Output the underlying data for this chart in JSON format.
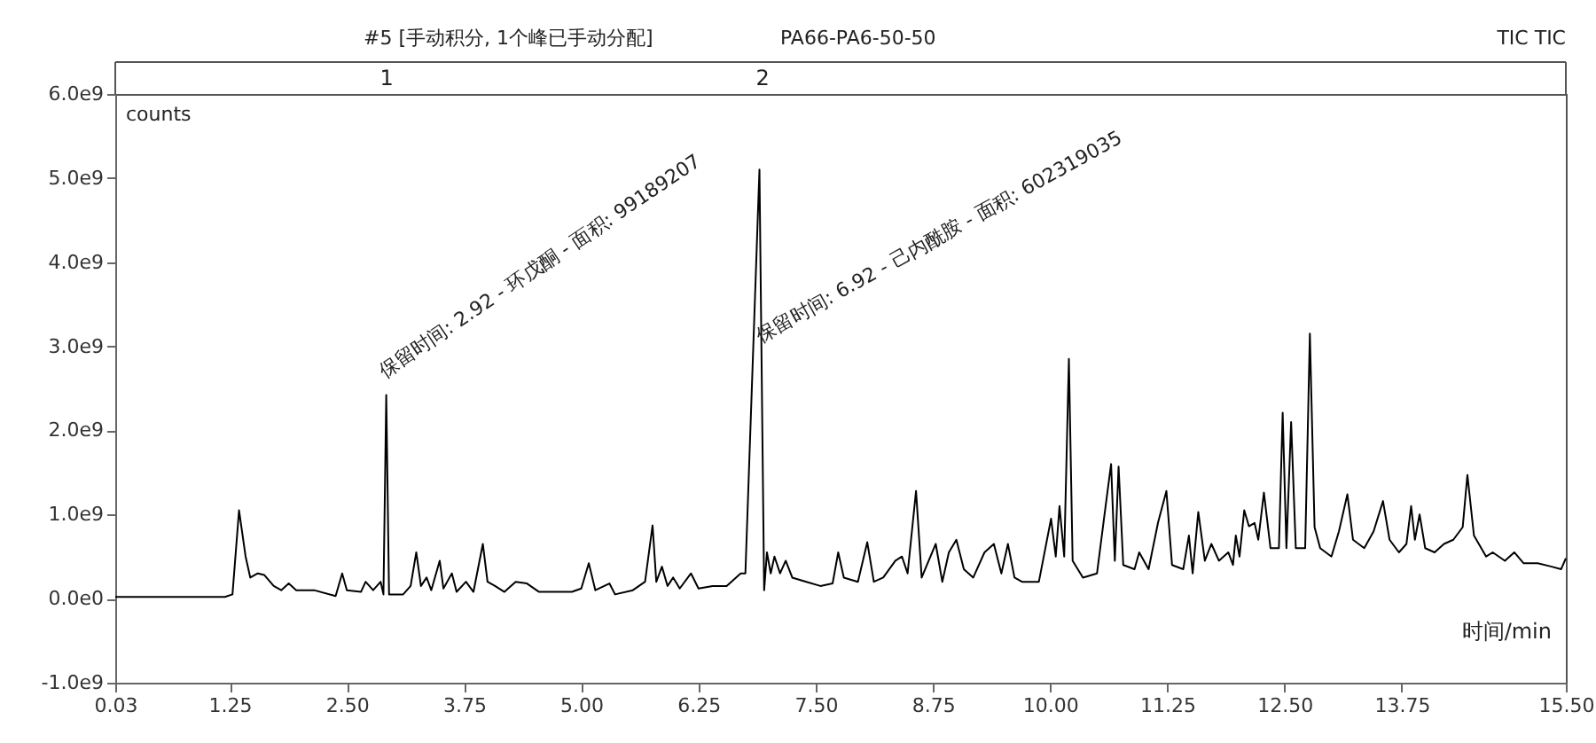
{
  "chart_data": {
    "type": "line",
    "title": "#5 [手动积分, 1个峰已手动分配]",
    "xlabel": "时间/min",
    "ylabel": "counts",
    "annotations": [
      "PA66-PA6-50-50",
      "TIC TIC",
      "保留时间: 2.92 - 环戊酮 - 面积: 99189207",
      "保留时间: 6.92 - 己内酰胺 - 面积: 602319035",
      "1",
      "2"
    ],
    "xlim": [
      0.03,
      15.5
    ],
    "xticks": [
      {
        "value": 0.03,
        "label": "0.03"
      },
      {
        "value": 1.25,
        "label": "1.25"
      },
      {
        "value": 2.5,
        "label": "2.50"
      },
      {
        "value": 3.75,
        "label": "3.75"
      },
      {
        "value": 5.0,
        "label": "5.00"
      },
      {
        "value": 6.25,
        "label": "6.25"
      },
      {
        "value": 7.5,
        "label": "7.50"
      },
      {
        "value": 8.75,
        "label": "8.75"
      },
      {
        "value": 10.0,
        "label": "10.00"
      },
      {
        "value": 11.25,
        "label": "11.25"
      },
      {
        "value": 12.5,
        "label": "12.50"
      },
      {
        "value": 13.75,
        "label": "13.75"
      },
      {
        "value": 15.5,
        "label": "15.50"
      }
    ],
    "ylim": [
      -1000000000.0,
      6000000000.0
    ],
    "yticks": [
      {
        "value": -1000000000.0,
        "label": "-1.0e9"
      },
      {
        "value": 0,
        "label": "0.0e0"
      },
      {
        "value": 1000000000.0,
        "label": "1.0e9"
      },
      {
        "value": 2000000000.0,
        "label": "2.0e9"
      },
      {
        "value": 3000000000.0,
        "label": "3.0e9"
      },
      {
        "value": 4000000000.0,
        "label": "4.0e9"
      },
      {
        "value": 5000000000.0,
        "label": "5.0e9"
      },
      {
        "value": 6000000000.0,
        "label": "6.0e9"
      }
    ],
    "grid": false,
    "marker": "none",
    "line_style": "solid",
    "x": [
      0.03,
      1.2,
      1.28,
      1.35,
      1.42,
      1.47,
      1.55,
      1.62,
      1.72,
      1.8,
      1.88,
      1.96,
      2.15,
      2.38,
      2.45,
      2.5,
      2.65,
      2.7,
      2.78,
      2.86,
      2.89,
      2.92,
      2.95,
      3.1,
      3.18,
      3.24,
      3.29,
      3.35,
      3.4,
      3.49,
      3.53,
      3.62,
      3.67,
      3.77,
      3.85,
      3.95,
      4.0,
      4.08,
      4.18,
      4.3,
      4.42,
      4.55,
      4.9,
      5.0,
      5.08,
      5.15,
      5.3,
      5.36,
      5.55,
      5.68,
      5.76,
      5.8,
      5.86,
      5.92,
      5.98,
      6.05,
      6.17,
      6.25,
      6.4,
      6.55,
      6.7,
      6.75,
      6.9,
      6.95,
      6.98,
      7.02,
      7.06,
      7.12,
      7.18,
      7.25,
      7.4,
      7.55,
      7.68,
      7.74,
      7.8,
      7.95,
      8.05,
      8.12,
      8.22,
      8.35,
      8.42,
      8.48,
      8.57,
      8.63,
      8.78,
      8.85,
      8.92,
      9.0,
      9.08,
      9.18,
      9.3,
      9.4,
      9.48,
      9.55,
      9.62,
      9.7,
      9.88,
      10.01,
      10.06,
      10.1,
      10.15,
      10.2,
      10.24,
      10.35,
      10.5,
      10.58,
      10.65,
      10.69,
      10.73,
      10.78,
      10.9,
      10.95,
      11.05,
      11.15,
      11.24,
      11.3,
      11.42,
      11.48,
      11.52,
      11.58,
      11.65,
      11.72,
      11.8,
      11.9,
      11.95,
      11.98,
      12.02,
      12.07,
      12.12,
      12.18,
      12.22,
      12.28,
      12.35,
      12.44,
      12.48,
      12.52,
      12.57,
      12.62,
      12.72,
      12.77,
      12.82,
      12.88,
      13.0,
      13.08,
      13.17,
      13.23,
      13.35,
      13.45,
      13.55,
      13.62,
      13.72,
      13.8,
      13.85,
      13.89,
      13.94,
      14.0,
      14.1,
      14.2,
      14.3,
      14.4,
      14.45,
      14.52,
      14.65,
      14.72,
      14.85,
      14.95,
      15.05,
      15.2,
      15.35,
      15.45,
      15.5
    ],
    "series": [
      {
        "color": "#000000",
        "values": [
          20000000.0,
          20000000.0,
          50000000.0,
          1050000000.0,
          500000000.0,
          250000000.0,
          300000000.0,
          280000000.0,
          150000000.0,
          100000000.0,
          180000000.0,
          100000000.0,
          100000000.0,
          30000000.0,
          300000000.0,
          100000000.0,
          80000000.0,
          200000000.0,
          100000000.0,
          200000000.0,
          50000000.0,
          2420000000.0,
          50000000.0,
          50000000.0,
          150000000.0,
          550000000.0,
          150000000.0,
          250000000.0,
          100000000.0,
          450000000.0,
          120000000.0,
          300000000.0,
          80000000.0,
          200000000.0,
          80000000.0,
          650000000.0,
          200000000.0,
          150000000.0,
          80000000.0,
          200000000.0,
          180000000.0,
          80000000.0,
          80000000.0,
          120000000.0,
          420000000.0,
          100000000.0,
          180000000.0,
          50000000.0,
          100000000.0,
          200000000.0,
          870000000.0,
          200000000.0,
          380000000.0,
          150000000.0,
          250000000.0,
          120000000.0,
          300000000.0,
          120000000.0,
          150000000.0,
          150000000.0,
          300000000.0,
          300000000.0,
          5100000000.0,
          100000000.0,
          550000000.0,
          300000000.0,
          500000000.0,
          300000000.0,
          450000000.0,
          250000000.0,
          200000000.0,
          150000000.0,
          180000000.0,
          550000000.0,
          250000000.0,
          200000000.0,
          670000000.0,
          200000000.0,
          250000000.0,
          450000000.0,
          500000000.0,
          300000000.0,
          1280000000.0,
          250000000.0,
          650000000.0,
          200000000.0,
          550000000.0,
          700000000.0,
          350000000.0,
          250000000.0,
          550000000.0,
          650000000.0,
          300000000.0,
          650000000.0,
          250000000.0,
          200000000.0,
          200000000.0,
          950000000.0,
          500000000.0,
          1100000000.0,
          500000000.0,
          2850000000.0,
          450000000.0,
          250000000.0,
          300000000.0,
          1000000000.0,
          1600000000.0,
          450000000.0,
          1570000000.0,
          400000000.0,
          350000000.0,
          550000000.0,
          350000000.0,
          900000000.0,
          1280000000.0,
          400000000.0,
          350000000.0,
          750000000.0,
          300000000.0,
          1030000000.0,
          450000000.0,
          650000000.0,
          450000000.0,
          550000000.0,
          400000000.0,
          750000000.0,
          500000000.0,
          1050000000.0,
          860000000.0,
          900000000.0,
          700000000.0,
          1260000000.0,
          600000000.0,
          600000000.0,
          2210000000.0,
          600000000.0,
          2100000000.0,
          600000000.0,
          600000000.0,
          3150000000.0,
          850000000.0,
          600000000.0,
          500000000.0,
          800000000.0,
          1240000000.0,
          700000000.0,
          600000000.0,
          800000000.0,
          1160000000.0,
          700000000.0,
          550000000.0,
          650000000.0,
          1100000000.0,
          700000000.0,
          1000000000.0,
          600000000.0,
          550000000.0,
          650000000.0,
          700000000.0,
          850000000.0,
          1470000000.0,
          750000000.0,
          500000000.0,
          550000000.0,
          450000000.0,
          550000000.0,
          420000000.0,
          420000000.0,
          380000000.0,
          350000000.0,
          480000000.0
        ]
      }
    ]
  }
}
